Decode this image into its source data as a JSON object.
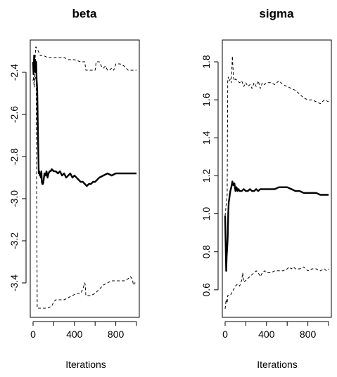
{
  "chart_data": [
    {
      "type": "line",
      "title": "beta",
      "xlabel": "Iterations",
      "ylabel": "",
      "xlim": [
        0,
        1000
      ],
      "ylim": [
        -3.55,
        -2.26
      ],
      "x_ticks": [
        0,
        400,
        800
      ],
      "x_tick_labels": [
        "0",
        "400",
        "800"
      ],
      "y_ticks": [
        -3.4,
        -3.2,
        -3.0,
        -2.8,
        -2.6,
        -2.4
      ],
      "y_tick_labels": [
        "-3.4",
        "-3.2",
        "-3.0",
        "-2.8",
        "-2.6",
        "-2.4"
      ],
      "grid": false,
      "series": [
        {
          "style": "solid-thick",
          "x": [
            0,
            5,
            10,
            15,
            20,
            25,
            30,
            35,
            40,
            45,
            50,
            55,
            60,
            65,
            70,
            75,
            80,
            85,
            90,
            95,
            100,
            110,
            120,
            130,
            140,
            150,
            160,
            170,
            180,
            200,
            220,
            240,
            260,
            280,
            300,
            320,
            340,
            360,
            380,
            400,
            420,
            440,
            460,
            480,
            500,
            520,
            540,
            560,
            580,
            600,
            640,
            680,
            720,
            760,
            800,
            840,
            880,
            920,
            960,
            1000
          ],
          "y": [
            -2.35,
            -2.41,
            -2.32,
            -2.38,
            -2.34,
            -2.4,
            -2.35,
            -2.44,
            -2.48,
            -2.62,
            -2.77,
            -2.88,
            -2.87,
            -2.89,
            -2.88,
            -2.9,
            -2.87,
            -2.92,
            -2.93,
            -2.93,
            -2.92,
            -2.88,
            -2.89,
            -2.87,
            -2.9,
            -2.88,
            -2.87,
            -2.87,
            -2.86,
            -2.87,
            -2.87,
            -2.88,
            -2.87,
            -2.89,
            -2.88,
            -2.9,
            -2.89,
            -2.88,
            -2.9,
            -2.89,
            -2.9,
            -2.91,
            -2.92,
            -2.92,
            -2.93,
            -2.94,
            -2.93,
            -2.93,
            -2.92,
            -2.92,
            -2.9,
            -2.89,
            -2.88,
            -2.89,
            -2.88,
            -2.88,
            -2.88,
            -2.88,
            -2.88,
            -2.88
          ]
        },
        {
          "style": "dashed-upper",
          "x": [
            0,
            5,
            10,
            15,
            20,
            25,
            30,
            40,
            50,
            60,
            70,
            80,
            100,
            140,
            200,
            260,
            300,
            340,
            400,
            460,
            490,
            500,
            510,
            530,
            560,
            600,
            610,
            620,
            640,
            660,
            680,
            700,
            720,
            740,
            760,
            780,
            800,
            840,
            880,
            920,
            960,
            1000
          ],
          "y": [
            -2.44,
            -2.42,
            -2.47,
            -2.45,
            -2.34,
            -2.28,
            -2.28,
            -2.29,
            -2.3,
            -2.31,
            -2.32,
            -2.32,
            -2.32,
            -2.33,
            -2.33,
            -2.33,
            -2.33,
            -2.34,
            -2.34,
            -2.35,
            -2.35,
            -2.35,
            -2.39,
            -2.39,
            -2.39,
            -2.39,
            -2.35,
            -2.35,
            -2.35,
            -2.37,
            -2.38,
            -2.37,
            -2.39,
            -2.39,
            -2.38,
            -2.39,
            -2.36,
            -2.36,
            -2.37,
            -2.39,
            -2.39,
            -2.39
          ]
        },
        {
          "style": "dashed-lower",
          "x": [
            0,
            10,
            20,
            30,
            35,
            40,
            50,
            60,
            80,
            100,
            140,
            180,
            200,
            220,
            260,
            300,
            340,
            380,
            420,
            460,
            480,
            500,
            505,
            510,
            520,
            560,
            600,
            620,
            640,
            680,
            720,
            760,
            800,
            840,
            880,
            920,
            940,
            960,
            970,
            980,
            1000
          ],
          "y": [
            -2.4,
            -2.44,
            -2.43,
            -2.42,
            -2.95,
            -3.52,
            -3.52,
            -3.52,
            -3.52,
            -3.52,
            -3.52,
            -3.51,
            -3.49,
            -3.48,
            -3.48,
            -3.48,
            -3.47,
            -3.46,
            -3.45,
            -3.45,
            -3.43,
            -3.4,
            -3.41,
            -3.46,
            -3.46,
            -3.46,
            -3.45,
            -3.44,
            -3.43,
            -3.41,
            -3.4,
            -3.39,
            -3.39,
            -3.39,
            -3.39,
            -3.38,
            -3.37,
            -3.38,
            -3.41,
            -3.4,
            -3.4
          ]
        }
      ]
    },
    {
      "type": "line",
      "title": "sigma",
      "xlabel": "Iterations",
      "ylabel": "",
      "xlim": [
        0,
        1000
      ],
      "ylim": [
        0.47,
        1.9
      ],
      "x_ticks": [
        0,
        400,
        800
      ],
      "x_tick_labels": [
        "0",
        "400",
        "800"
      ],
      "y_ticks": [
        0.6,
        0.8,
        1.0,
        1.2,
        1.4,
        1.6,
        1.8
      ],
      "y_tick_labels": [
        "0.6",
        "0.8",
        "1.0",
        "1.2",
        "1.4",
        "1.6",
        "1.8"
      ],
      "grid": false,
      "series": [
        {
          "style": "solid-thick",
          "x": [
            0,
            5,
            10,
            15,
            20,
            25,
            30,
            35,
            40,
            45,
            50,
            60,
            70,
            80,
            90,
            100,
            110,
            120,
            130,
            140,
            160,
            180,
            200,
            220,
            240,
            260,
            280,
            300,
            320,
            340,
            360,
            380,
            400,
            440,
            480,
            520,
            560,
            600,
            640,
            680,
            720,
            760,
            800,
            840,
            880,
            920,
            960,
            1000
          ],
          "y": [
            0.99,
            0.85,
            0.7,
            0.78,
            0.82,
            0.88,
            1.0,
            1.06,
            1.08,
            1.1,
            1.12,
            1.14,
            1.17,
            1.15,
            1.16,
            1.12,
            1.14,
            1.12,
            1.13,
            1.12,
            1.12,
            1.13,
            1.12,
            1.12,
            1.13,
            1.12,
            1.12,
            1.13,
            1.12,
            1.13,
            1.13,
            1.13,
            1.13,
            1.13,
            1.13,
            1.14,
            1.14,
            1.14,
            1.13,
            1.12,
            1.12,
            1.11,
            1.11,
            1.11,
            1.11,
            1.1,
            1.1,
            1.1
          ]
        },
        {
          "style": "dashed-upper",
          "x": [
            0,
            10,
            20,
            25,
            30,
            40,
            50,
            60,
            70,
            80,
            90,
            100,
            120,
            140,
            160,
            180,
            200,
            220,
            240,
            260,
            280,
            300,
            320,
            340,
            360,
            380,
            400,
            440,
            480,
            520,
            560,
            600,
            640,
            680,
            720,
            760,
            800,
            840,
            880,
            920,
            960,
            1000
          ],
          "y": [
            0.99,
            1.05,
            1.1,
            1.7,
            1.72,
            1.7,
            1.71,
            1.69,
            1.83,
            1.72,
            1.7,
            1.71,
            1.7,
            1.69,
            1.7,
            1.67,
            1.69,
            1.67,
            1.68,
            1.66,
            1.69,
            1.67,
            1.7,
            1.66,
            1.69,
            1.68,
            1.69,
            1.69,
            1.68,
            1.7,
            1.68,
            1.67,
            1.66,
            1.65,
            1.63,
            1.61,
            1.6,
            1.6,
            1.59,
            1.58,
            1.6,
            1.59
          ]
        },
        {
          "style": "dashed-lower",
          "x": [
            0,
            10,
            20,
            25,
            30,
            50,
            60,
            80,
            100,
            120,
            140,
            160,
            170,
            180,
            200,
            240,
            280,
            300,
            320,
            340,
            360,
            380,
            400,
            440,
            480,
            520,
            560,
            600,
            620,
            640,
            660,
            680,
            720,
            760,
            800,
            840,
            880,
            920,
            960,
            980,
            1000
          ],
          "y": [
            0.5,
            0.55,
            0.53,
            0.57,
            0.57,
            0.57,
            0.58,
            0.6,
            0.62,
            0.63,
            0.62,
            0.65,
            0.69,
            0.64,
            0.65,
            0.67,
            0.69,
            0.7,
            0.69,
            0.67,
            0.69,
            0.7,
            0.69,
            0.69,
            0.7,
            0.7,
            0.7,
            0.71,
            0.72,
            0.71,
            0.72,
            0.71,
            0.71,
            0.72,
            0.7,
            0.71,
            0.71,
            0.7,
            0.71,
            0.7,
            0.71
          ]
        }
      ]
    }
  ]
}
